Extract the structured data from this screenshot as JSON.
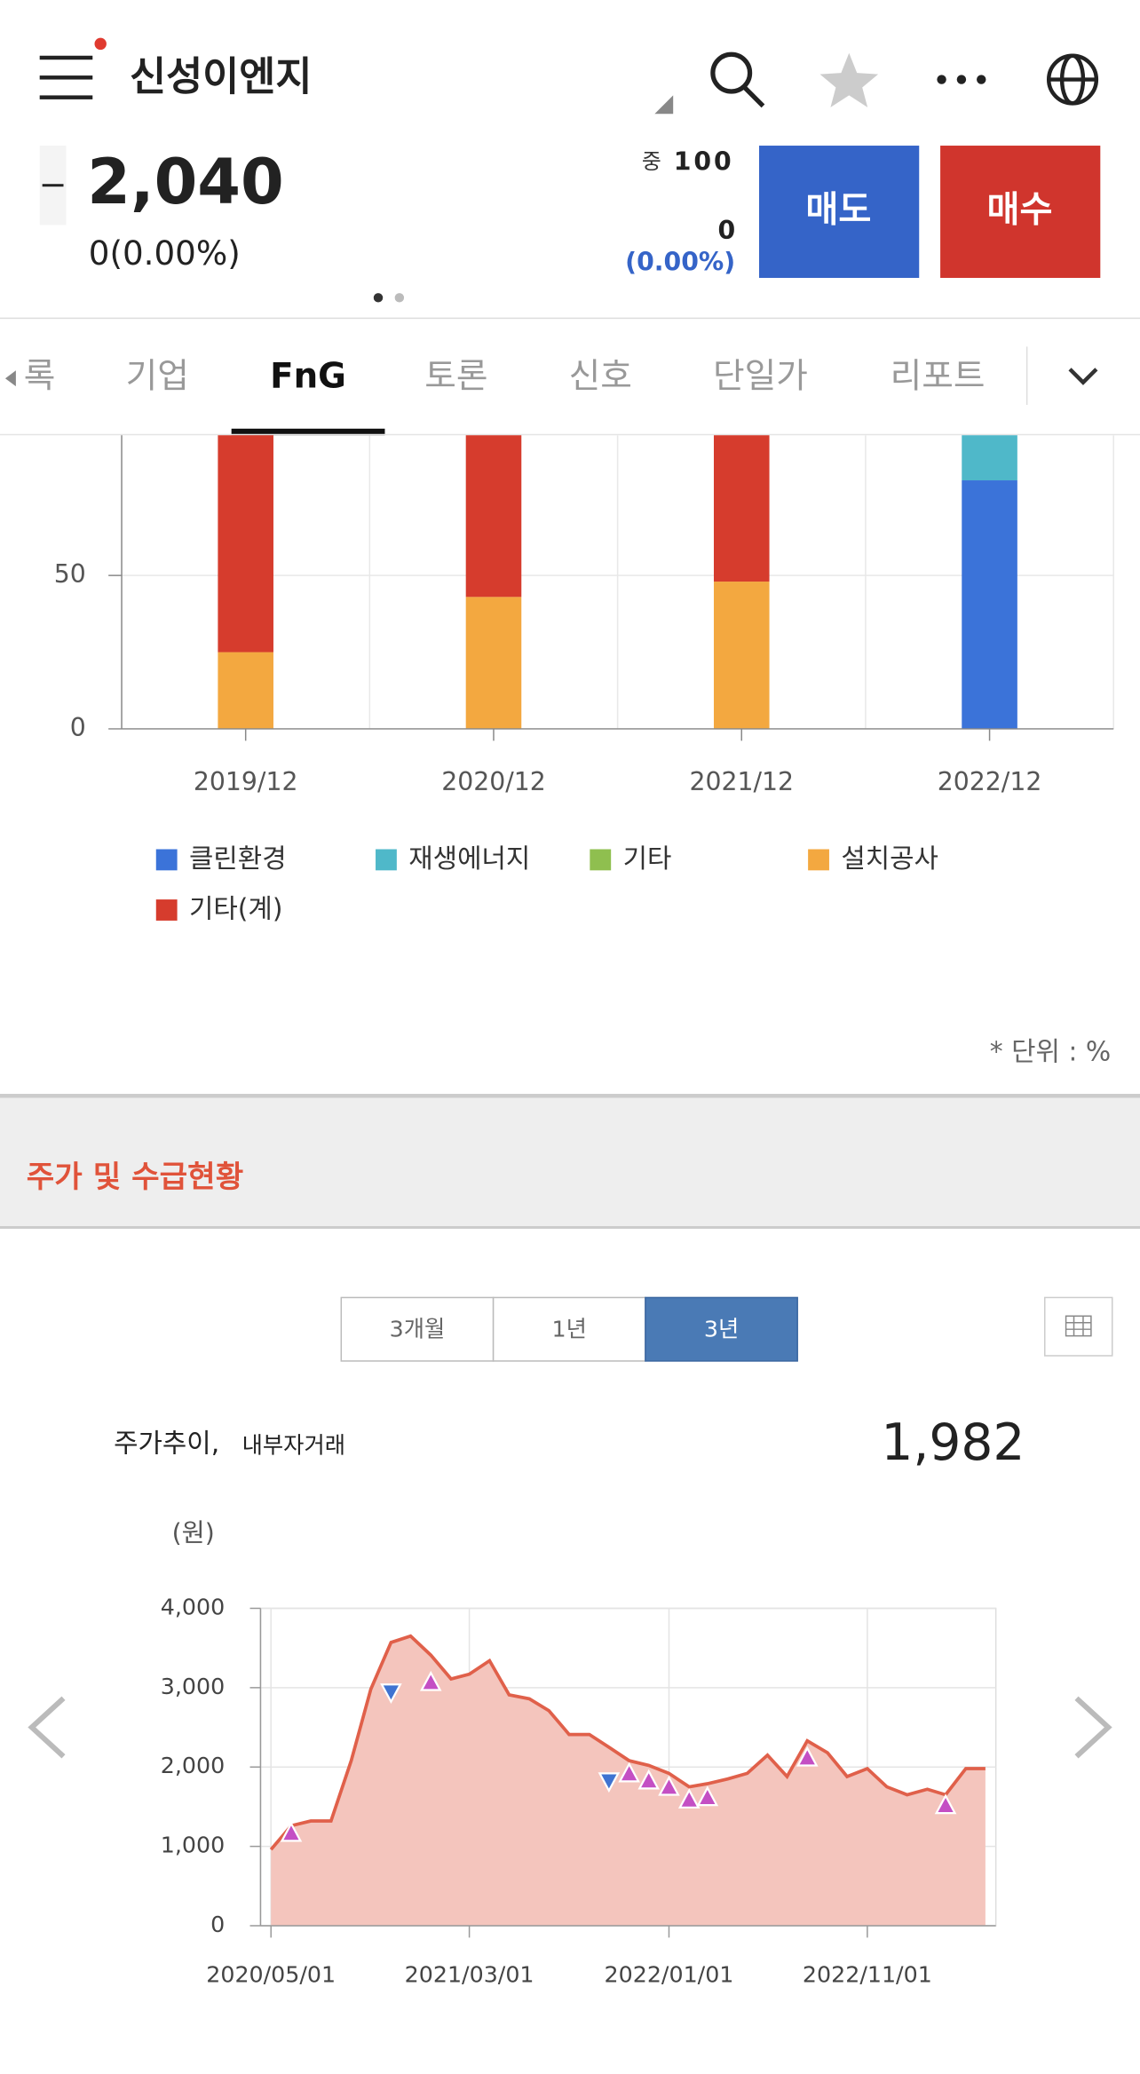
{
  "header": {
    "title": "신성이엔지"
  },
  "quote": {
    "price": "2,040",
    "change": "0(0.00%)",
    "volume_label": "중",
    "volume": "100",
    "diff": "0",
    "diff_pct": "(0.00%)",
    "sell": "매도",
    "buy": "매수"
  },
  "tabs": [
    "록",
    "기업",
    "FnG",
    "토론",
    "신호",
    "단일가",
    "리포트"
  ],
  "section": {
    "title": "주가 및 수급현황",
    "periods": [
      "3개월",
      "1년",
      "3년"
    ]
  },
  "chart_data": [
    {
      "type": "bar",
      "stacked": true,
      "categories": [
        "2019/12",
        "2020/12",
        "2021/12",
        "2022/12"
      ],
      "series": [
        {
          "name": "클린환경",
          "color": "#3b73d9",
          "values": [
            0,
            0,
            0,
            81
          ]
        },
        {
          "name": "재생에너지",
          "color": "#4fb8c9",
          "values": [
            0,
            0,
            0,
            19
          ]
        },
        {
          "name": "기타",
          "color": "#8fbf4f",
          "values": [
            0,
            0,
            0,
            0
          ]
        },
        {
          "name": "설치공사",
          "color": "#f3a840",
          "values": [
            25,
            43,
            48,
            0
          ]
        },
        {
          "name": "기타(계)",
          "color": "#d63c2d",
          "values": [
            75,
            57,
            52,
            0
          ]
        }
      ],
      "ylim": [
        0,
        100
      ],
      "yticks": [
        0,
        50
      ],
      "grid": true,
      "unit_note": "* 단위 : %"
    },
    {
      "type": "line",
      "title": "주가추이,",
      "subtitle": "내부자거래",
      "current_value": "1,982",
      "y_unit": "(원)",
      "x": [
        "2020/05/01",
        "2020/06/01",
        "2020/07/01",
        "2020/08/01",
        "2020/09/01",
        "2020/10/01",
        "2020/11/01",
        "2020/12/01",
        "2021/01/01",
        "2021/02/01",
        "2021/03/01",
        "2021/04/01",
        "2021/05/01",
        "2021/06/01",
        "2021/07/01",
        "2021/08/01",
        "2021/09/01",
        "2021/10/01",
        "2021/11/01",
        "2021/12/01",
        "2022/01/01",
        "2022/02/01",
        "2022/03/01",
        "2022/04/01",
        "2022/05/01",
        "2022/06/01",
        "2022/07/01",
        "2022/08/01",
        "2022/09/01",
        "2022/10/01",
        "2022/11/01",
        "2022/12/01",
        "2023/01/01",
        "2023/02/01",
        "2023/03/01",
        "2023/04/01",
        "2023/05/01"
      ],
      "series": [
        {
          "color": "#e0604a",
          "fill": "#f4c5bd",
          "values": [
            960,
            1260,
            1320,
            1320,
            2080,
            2980,
            3570,
            3650,
            3410,
            3110,
            3170,
            3340,
            2910,
            2860,
            2710,
            2410,
            2410,
            2250,
            2080,
            2020,
            1920,
            1750,
            1790,
            1850,
            1920,
            2150,
            1880,
            2330,
            2180,
            1880,
            1980,
            1750,
            1650,
            1720,
            1650,
            1980,
            1980
          ]
        }
      ],
      "buys": {
        "color": "#c44fc4",
        "x": [
          "2020/06/01",
          "2021/01/01",
          "2021/11/01",
          "2021/12/01",
          "2022/01/01",
          "2022/02/01",
          "2022/03/01",
          "2022/08/01",
          "2023/03/01"
        ],
        "values": [
          1170,
          3070,
          1920,
          1830,
          1750,
          1590,
          1620,
          2120,
          1520
        ]
      },
      "sells": {
        "color": "#3f73d1",
        "x": [
          "2020/11/01",
          "2021/10/01"
        ],
        "values": [
          2940,
          1820
        ]
      },
      "xlim": [
        "2020/04/15",
        "2023/05/17"
      ],
      "xticks": [
        "2020/05/01",
        "2021/03/01",
        "2022/01/01",
        "2022/11/01"
      ],
      "ylim": [
        0,
        4000
      ],
      "yticks": [
        0,
        {
          "value": 1000,
          "label": "1,000"
        },
        {
          "value": 2000,
          "label": "2,000"
        },
        {
          "value": 3000,
          "label": "3,000"
        },
        {
          "value": 4000,
          "label": "4,000"
        }
      ],
      "grid": true
    }
  ]
}
